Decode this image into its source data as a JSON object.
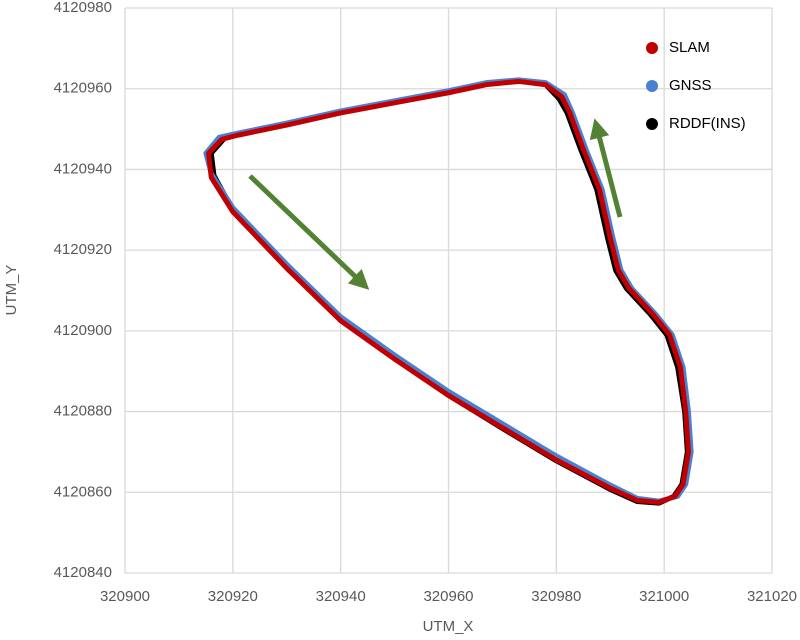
{
  "chart_data": {
    "type": "line",
    "x_label": "UTM_X",
    "y_label": "UTM_Y",
    "xlim": [
      320900,
      321020
    ],
    "xticks": [
      320900,
      320920,
      320940,
      320960,
      320980,
      321000,
      321020
    ],
    "ylim": [
      4120840,
      4120980
    ],
    "yticks": [
      4120840,
      4120860,
      4120880,
      4120900,
      4120920,
      4120940,
      4120960,
      4120980
    ],
    "grid": true,
    "legend": "upper right",
    "series": [
      {
        "name": "SLAM",
        "color": "#c00000",
        "x": [
          320915.5,
          320918,
          320921,
          320930,
          320940,
          320950,
          320960,
          320967,
          320973,
          320978,
          320981,
          320982.5,
          320985,
          320988,
          320990,
          320991.5,
          320993.5,
          320998,
          321001,
          321003,
          321004,
          321004.5,
          321003.5,
          321002,
          320999,
          320995,
          320990,
          320980,
          320970,
          320960,
          320950,
          320940,
          320930,
          320920,
          320916,
          320915.5
        ],
        "values": [
          4120944,
          4120947.5,
          4120948.5,
          4120951,
          4120954,
          4120956.5,
          4120959,
          4120961,
          4120961.8,
          4120961,
          4120958,
          4120954,
          4120945,
          4120935,
          4120923,
          4120915,
          4120910.5,
          4120904,
          4120899,
          4120891,
          4120880,
          4120870,
          4120862,
          4120859,
          4120857.5,
          4120858,
          4120861,
          4120868,
          4120876,
          4120884,
          4120893,
          4120902.5,
          4120915.5,
          4120929.5,
          4120938,
          4120944
        ]
      },
      {
        "name": "GNSS",
        "color": "#4a80d0",
        "x": [
          320915,
          320917.5,
          320921,
          320930,
          320940,
          320950,
          320960,
          320967,
          320973,
          320978,
          320981.5,
          320983,
          320985.5,
          320988.5,
          320990.5,
          320992,
          320994,
          320998.5,
          321001.5,
          321003.5,
          321004.5,
          321005,
          321004,
          321002.5,
          320999,
          320995,
          320990,
          320980,
          320970,
          320960,
          320950,
          320940,
          320930,
          320920,
          320916,
          320915
        ],
        "values": [
          4120944,
          4120948,
          4120949,
          4120951.5,
          4120954.5,
          4120957,
          4120959.5,
          4120961.5,
          4120962.2,
          4120961.5,
          4120958.5,
          4120954,
          4120945,
          4120935,
          4120923,
          4120915,
          4120910.5,
          4120904,
          4120899,
          4120891,
          4120880,
          4120870,
          4120862,
          4120859,
          4120857.8,
          4120858.5,
          4120861.8,
          4120869,
          4120877,
          4120885,
          4120894,
          4120903.5,
          4120916.5,
          4120930.5,
          4120939,
          4120944
        ]
      },
      {
        "name": "RDDF(INS)",
        "color": "#000000",
        "x": [
          320916,
          320918.5,
          320921,
          320930,
          320940,
          320950,
          320960,
          320967,
          320973,
          320978,
          320980.5,
          320982,
          320984.5,
          320987.5,
          320989.5,
          320991,
          320993,
          320997.5,
          321000.5,
          321002.5,
          321003.8,
          321004.3,
          321003.3,
          321001.8,
          320999,
          320995,
          320990,
          320980,
          320970,
          320960,
          320950,
          320940,
          320930,
          320920,
          320916.5,
          320916
        ],
        "values": [
          4120944,
          4120947.8,
          4120948.8,
          4120951.3,
          4120954.3,
          4120956.8,
          4120959.3,
          4120961.3,
          4120962,
          4120961,
          4120957.5,
          4120954,
          4120945,
          4120935,
          4120923,
          4120915,
          4120910.5,
          4120904,
          4120899,
          4120891,
          4120880,
          4120870,
          4120862,
          4120859,
          4120857.3,
          4120857.7,
          4120860.7,
          4120867.8,
          4120875.8,
          4120884,
          4120893.2,
          4120903,
          4120916,
          4120930,
          4120938.5,
          4120944
        ]
      }
    ]
  }
}
